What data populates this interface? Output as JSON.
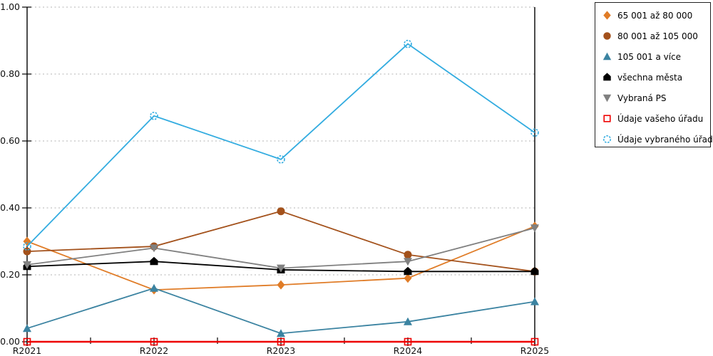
{
  "chart_data": {
    "type": "line",
    "title": "",
    "xlabel": "",
    "ylabel": "",
    "categories": [
      "R2021",
      "R2022",
      "R2023",
      "R2024",
      "R2025"
    ],
    "y_axis": {
      "min": 0.0,
      "max": 1.0,
      "step": 0.2,
      "tick_labels": [
        "0.00",
        "0.20",
        "0.40",
        "0.60",
        "0.80",
        "1.00"
      ]
    },
    "grid": "horizontal-dotted",
    "legend_position": "top-right",
    "axis_color": "#000000",
    "grid_color": "#b3b3b3",
    "series": [
      {
        "name": "65 001 až 80 000",
        "color": "#E07C27",
        "marker": "diamond",
        "values": [
          0.3,
          0.155,
          0.17,
          0.19,
          0.345
        ]
      },
      {
        "name": "80 001 až 105 000",
        "color": "#A3511B",
        "marker": "circle",
        "values": [
          0.27,
          0.285,
          0.39,
          0.26,
          0.21
        ]
      },
      {
        "name": "105 001 a více",
        "color": "#3B83A1",
        "marker": "triangle-up",
        "values": [
          0.04,
          0.16,
          0.025,
          0.06,
          0.12
        ]
      },
      {
        "name": "všechna města",
        "color": "#000000",
        "marker": "pentagon",
        "values": [
          0.225,
          0.24,
          0.215,
          0.21,
          0.21
        ]
      },
      {
        "name": "Vybraná PS",
        "color": "#808080",
        "marker": "triangle-down",
        "values": [
          0.23,
          0.28,
          0.22,
          0.24,
          0.34
        ]
      },
      {
        "name": "Údaje vašeho úřadu",
        "color": "#EE0000",
        "marker": "square-open",
        "values": [
          0.0,
          0.0,
          0.0,
          0.0,
          0.0
        ]
      },
      {
        "name": "Údaje vybraného úřadu",
        "color": "#33ACE0",
        "marker": "circle-open",
        "values": [
          0.285,
          0.675,
          0.545,
          0.89,
          0.625
        ]
      }
    ]
  }
}
